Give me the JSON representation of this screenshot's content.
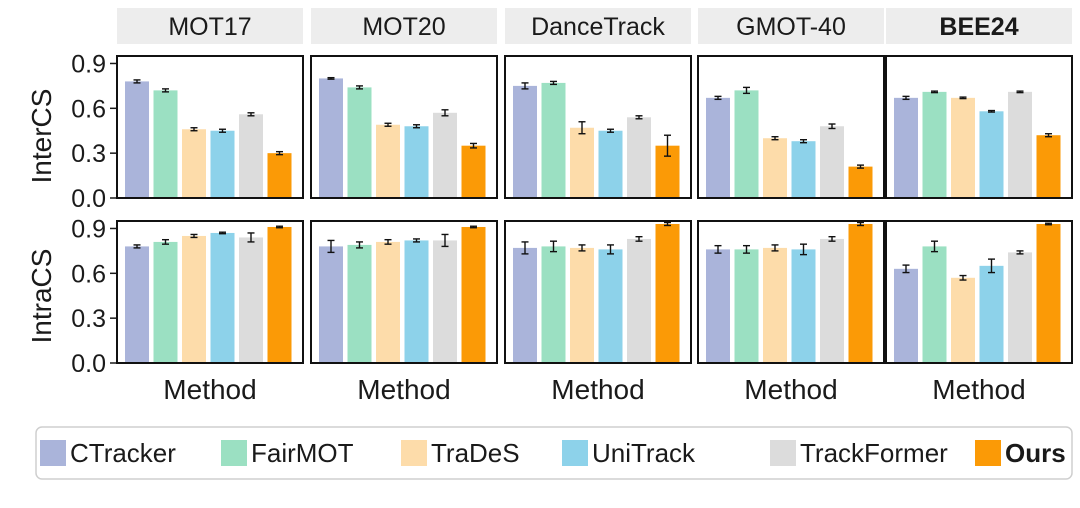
{
  "chart_data": {
    "type": "bar",
    "title": "",
    "panels": [
      "MOT17",
      "MOT20",
      "DanceTrack",
      "GMOT-40",
      "BEE24"
    ],
    "panel_bold": [
      false,
      false,
      false,
      false,
      true
    ],
    "rows": [
      {
        "ylabel": "InterCS",
        "ylim": [
          0,
          0.95
        ],
        "yticks": [
          0.0,
          0.3,
          0.6,
          0.9
        ],
        "yticklabels": [
          "0.0",
          "0.3",
          "0.6",
          "0.9"
        ],
        "series": [
          {
            "name": "CTracker",
            "values": [
              0.78,
              0.8,
              0.75,
              0.67,
              0.67
            ],
            "errors": [
              0.01,
              0.005,
              0.02,
              0.01,
              0.01
            ]
          },
          {
            "name": "FairMOT",
            "values": [
              0.72,
              0.74,
              0.77,
              0.72,
              0.71
            ],
            "errors": [
              0.01,
              0.01,
              0.01,
              0.02,
              0.005
            ]
          },
          {
            "name": "TraDeS",
            "values": [
              0.46,
              0.49,
              0.47,
              0.4,
              0.67
            ],
            "errors": [
              0.01,
              0.01,
              0.04,
              0.01,
              0.005
            ]
          },
          {
            "name": "UniTrack",
            "values": [
              0.45,
              0.48,
              0.45,
              0.38,
              0.58
            ],
            "errors": [
              0.01,
              0.01,
              0.01,
              0.01,
              0.005
            ]
          },
          {
            "name": "TrackFormer",
            "values": [
              0.56,
              0.57,
              0.54,
              0.48,
              0.71
            ],
            "errors": [
              0.01,
              0.02,
              0.01,
              0.015,
              0.005
            ]
          },
          {
            "name": "Ours",
            "values": [
              0.3,
              0.35,
              0.35,
              0.21,
              0.42
            ],
            "errors": [
              0.01,
              0.015,
              0.07,
              0.01,
              0.01
            ]
          }
        ]
      },
      {
        "ylabel": "IntraCS",
        "ylim": [
          0,
          0.95
        ],
        "yticks": [
          0.0,
          0.3,
          0.6,
          0.9
        ],
        "yticklabels": [
          "0.0",
          "0.3",
          "0.6",
          "0.9"
        ],
        "series": [
          {
            "name": "CTracker",
            "values": [
              0.78,
              0.78,
              0.77,
              0.76,
              0.63
            ],
            "errors": [
              0.01,
              0.04,
              0.04,
              0.025,
              0.025
            ]
          },
          {
            "name": "FairMOT",
            "values": [
              0.81,
              0.79,
              0.78,
              0.76,
              0.78
            ],
            "errors": [
              0.015,
              0.02,
              0.035,
              0.025,
              0.035
            ]
          },
          {
            "name": "TraDeS",
            "values": [
              0.85,
              0.81,
              0.77,
              0.77,
              0.57
            ],
            "errors": [
              0.01,
              0.015,
              0.02,
              0.02,
              0.015
            ]
          },
          {
            "name": "UniTrack",
            "values": [
              0.87,
              0.82,
              0.76,
              0.76,
              0.65
            ],
            "errors": [
              0.005,
              0.01,
              0.03,
              0.035,
              0.045
            ]
          },
          {
            "name": "TrackFormer",
            "values": [
              0.84,
              0.82,
              0.83,
              0.83,
              0.74
            ],
            "errors": [
              0.03,
              0.04,
              0.015,
              0.015,
              0.01
            ]
          },
          {
            "name": "Ours",
            "values": [
              0.91,
              0.91,
              0.93,
              0.93,
              0.93
            ],
            "errors": [
              0.005,
              0.005,
              0.01,
              0.01,
              0.005
            ]
          }
        ]
      }
    ],
    "xlabel": "Method",
    "legend": {
      "position": "bottom",
      "entries": [
        {
          "name": "CTracker",
          "bold": false
        },
        {
          "name": "FairMOT",
          "bold": false
        },
        {
          "name": "TraDeS",
          "bold": false
        },
        {
          "name": "UniTrack",
          "bold": false
        },
        {
          "name": "TrackFormer",
          "bold": false
        },
        {
          "name": "Ours",
          "bold": true
        }
      ]
    },
    "colors": {
      "CTracker": "#aab4da",
      "FairMOT": "#9be0c2",
      "TraDeS": "#fddcaa",
      "UniTrack": "#8dd2ea",
      "TrackFormer": "#dcdcdc",
      "Ours": "#fb9a06"
    },
    "strip_background": "#ededed",
    "grid": false
  }
}
